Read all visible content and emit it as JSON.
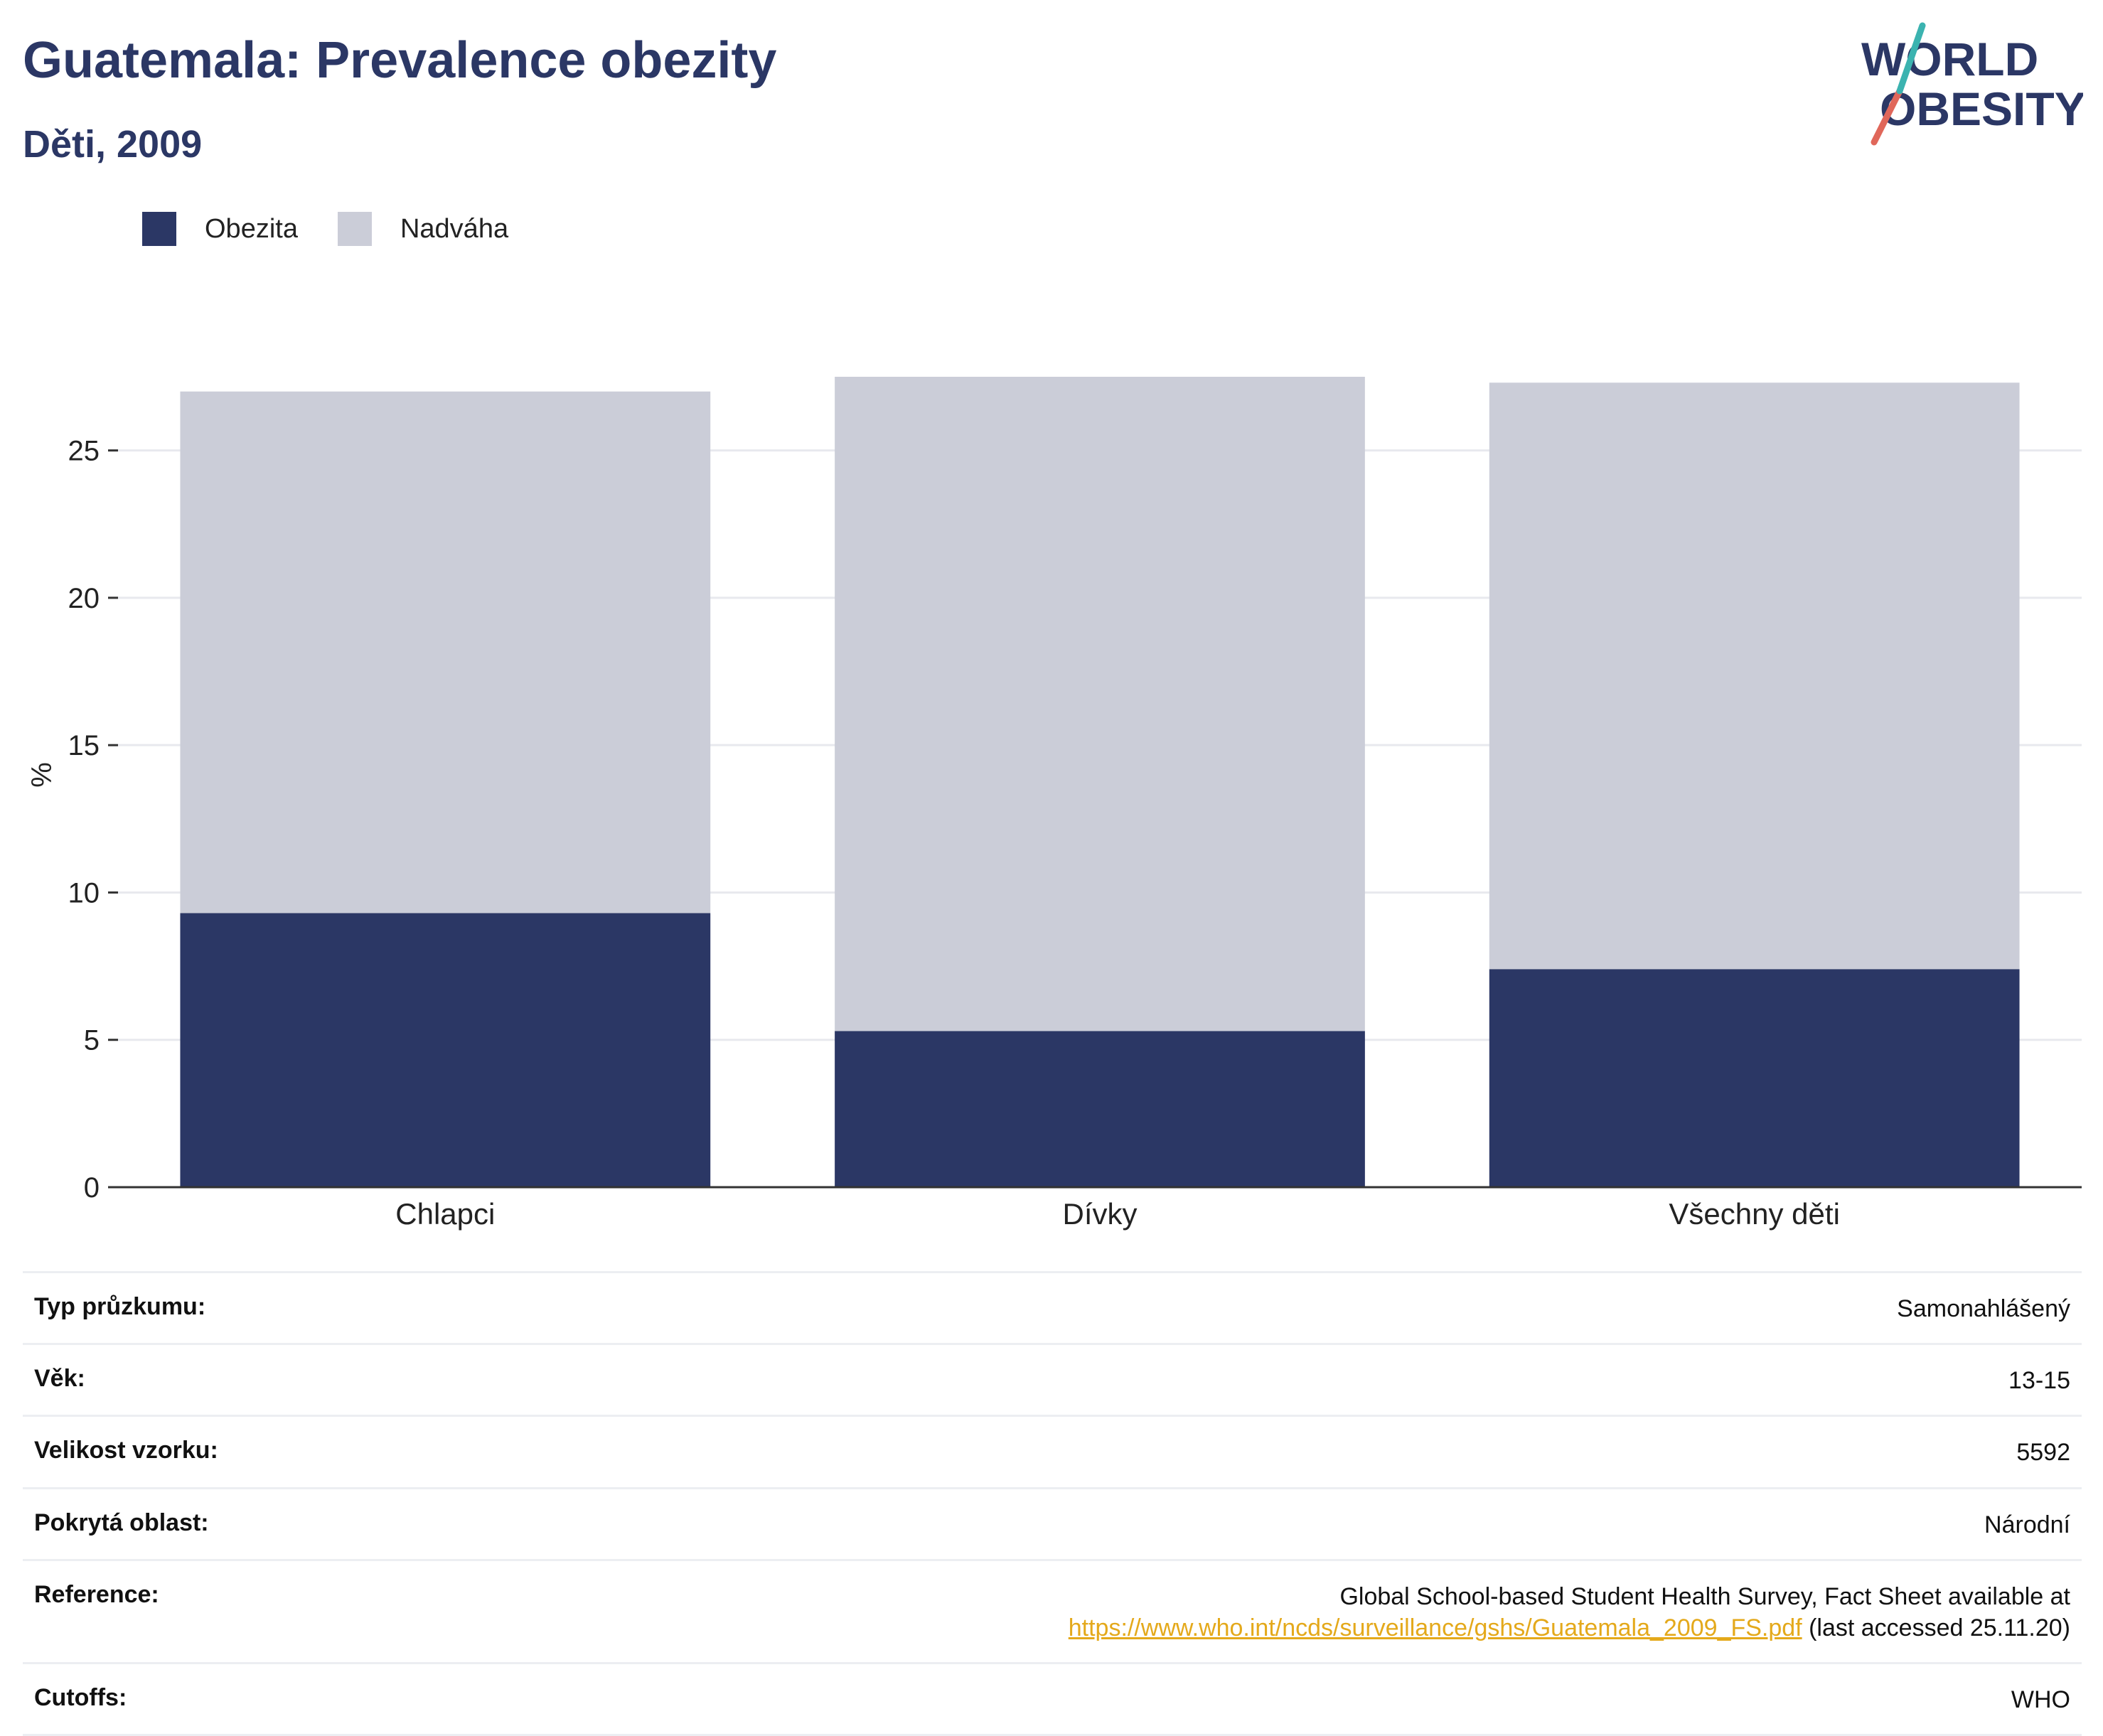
{
  "header": {
    "title": "Guatemala: Prevalence obezity",
    "subtitle": "Děti, 2009"
  },
  "logo": {
    "line1": "WORLD",
    "line2": "OBESITY"
  },
  "colors": {
    "obesity": "#2b3765",
    "overweight": "#cbcdd8",
    "title": "#2b3765",
    "link": "#e4a91b"
  },
  "chart_data": {
    "type": "bar",
    "stacked": true,
    "categories": [
      "Chlapci",
      "Dívky",
      "Všechny děti"
    ],
    "series": [
      {
        "name": "Obezita",
        "values": [
          9.3,
          5.3,
          7.4
        ]
      },
      {
        "name": "Nadváha",
        "values": [
          17.7,
          22.2,
          19.9
        ]
      }
    ],
    "ylabel": "%",
    "xlabel": "",
    "ylim": [
      0,
      27.5
    ],
    "yticks": [
      0,
      5,
      10,
      15,
      20,
      25
    ],
    "grid": true,
    "legend": "top-left"
  },
  "info": {
    "rows": [
      {
        "label": "Typ průzkumu:",
        "value": "Samonahlášený"
      },
      {
        "label": "Věk:",
        "value": "13-15"
      },
      {
        "label": "Velikost vzorku:",
        "value": "5592"
      },
      {
        "label": "Pokrytá oblast:",
        "value": "Národní"
      }
    ],
    "reference": {
      "label": "Reference:",
      "text": "Global School-based Student Health Survey, Fact Sheet available at",
      "link": "https://www.who.int/ncds/surveillance/gshs/Guatemala_2009_FS.pdf",
      "suffix": " (last accessed 25.11.20)"
    },
    "cutoffs": {
      "label": "Cutoffs:",
      "value": "WHO"
    }
  }
}
